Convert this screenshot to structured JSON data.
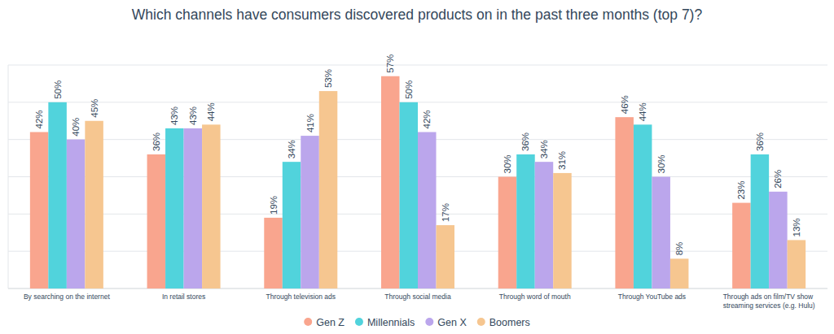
{
  "chart_data": {
    "type": "bar",
    "title": "Which channels have consumers discovered products on in the past three months (top 7)?",
    "categories": [
      "By searching on the internet",
      "In retail stores",
      "Through television ads",
      "Through social media",
      "Through word of mouth",
      "Through YouTube ads",
      "Through ads on film/TV show streaming services (e.g. Hulu)"
    ],
    "series": [
      {
        "name": "Gen Z",
        "color": "#f9a58e",
        "values": [
          42,
          36,
          19,
          57,
          30,
          46,
          23
        ],
        "value_labels": [
          "42%",
          "36%",
          "19%",
          "57%",
          "30%",
          "46%",
          "23%"
        ]
      },
      {
        "name": "Millennials",
        "color": "#51d3dc",
        "values": [
          50,
          43,
          34,
          50,
          36,
          44,
          36
        ],
        "value_labels": [
          "50%",
          "43%",
          "34%",
          "50%",
          "36%",
          "44%",
          "36%"
        ]
      },
      {
        "name": "Gen X",
        "color": "#bba6ec",
        "values": [
          40,
          43,
          41,
          42,
          34,
          30,
          26
        ],
        "value_labels": [
          "40%",
          "43%",
          "41%",
          "42%",
          "34%",
          "30%",
          "26%"
        ]
      },
      {
        "name": "Boomers",
        "color": "#f6c690",
        "values": [
          45,
          44,
          53,
          17,
          31,
          8,
          13
        ],
        "value_labels": [
          "45%",
          "44%",
          "53%",
          "17%",
          "31%",
          "8%",
          "13%"
        ]
      }
    ],
    "ylim": [
      0,
      60
    ],
    "yticks": [
      0,
      10,
      20,
      30,
      40,
      50,
      60
    ],
    "grid": true,
    "data_labels": true,
    "tick_labels": false,
    "legend": "bottom"
  }
}
